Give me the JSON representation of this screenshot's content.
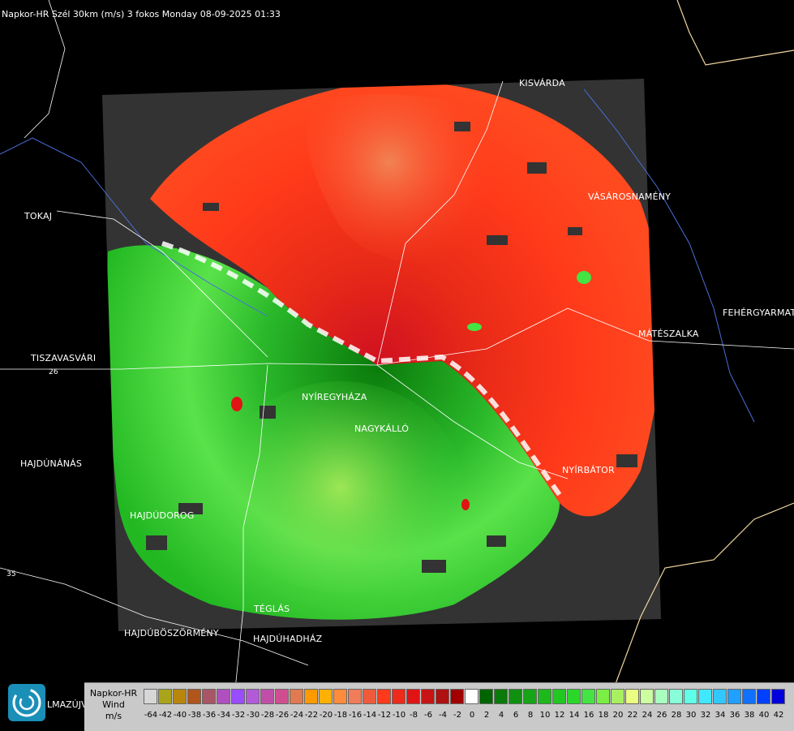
{
  "title": "Napkor-HR Szél 30km (m/s) 3 fokos Monday 08-09-2025 01:33",
  "cities": [
    {
      "name": "KISVÁRDA"
    },
    {
      "name": "TOKAJ"
    },
    {
      "name": "VÁSÁROSNAMÉNY"
    },
    {
      "name": "FEHÉRGYARMAT"
    },
    {
      "name": "MÁTÉSZALKA"
    },
    {
      "name": "TISZAVASVÁRI"
    },
    {
      "name": "NYÍREGYHÁZA"
    },
    {
      "name": "NAGYKÁLLÓ"
    },
    {
      "name": "HAJDÚNÁNÁS"
    },
    {
      "name": "NYÍRBÁTOR"
    },
    {
      "name": "HAJDÚDOROG"
    },
    {
      "name": "TÉGLÁS"
    },
    {
      "name": "HAJDÚBÖSZÖRMÉNY"
    },
    {
      "name": "HAJDÚHADHÁZ"
    }
  ],
  "road_numbers": [
    "26",
    "35"
  ],
  "logo_text": "LMAZÚJVÁR",
  "legend": {
    "line1": "Napkor-HR",
    "line2": "Wind",
    "line3": "m/s",
    "ticks": [
      "-64",
      "-42",
      "-40",
      "-38",
      "-36",
      "-34",
      "-32",
      "-30",
      "-28",
      "-26",
      "-24",
      "-22",
      "-20",
      "-18",
      "-16",
      "-14",
      "-12",
      "-10",
      "-8",
      "-6",
      "-4",
      "-2",
      "0",
      "2",
      "4",
      "6",
      "8",
      "10",
      "12",
      "14",
      "16",
      "18",
      "20",
      "22",
      "24",
      "26",
      "28",
      "30",
      "32",
      "34",
      "36",
      "38",
      "40",
      "42"
    ],
    "colors": [
      "#d7d7d7",
      "#a9a41a",
      "#b8860b",
      "#b0551c",
      "#a85566",
      "#b04fc0",
      "#9a4cff",
      "#b35ad9",
      "#c04ea8",
      "#d04e90",
      "#e07a50",
      "#ff9a00",
      "#ffb000",
      "#ff8c3a",
      "#f07c5a",
      "#f05a3a",
      "#ff3a1a",
      "#ee2a1a",
      "#e01414",
      "#c81414",
      "#b01010",
      "#a00000",
      "#ffffff",
      "#006400",
      "#0a7a0a",
      "#109010",
      "#16a516",
      "#1cb81c",
      "#22c822",
      "#2ad82a",
      "#44e444",
      "#7aee44",
      "#a8f060",
      "#eaff80",
      "#ccffa0",
      "#a8ffc0",
      "#88ffd8",
      "#60ffe8",
      "#40e8ff",
      "#30c8ff",
      "#20a0ff",
      "#1070ff",
      "#0040ff",
      "#0000dd"
    ]
  },
  "colors": {
    "background": "#000000",
    "no_echo": "#333333",
    "approaching": "#00c000",
    "receding": "#ff2000"
  }
}
